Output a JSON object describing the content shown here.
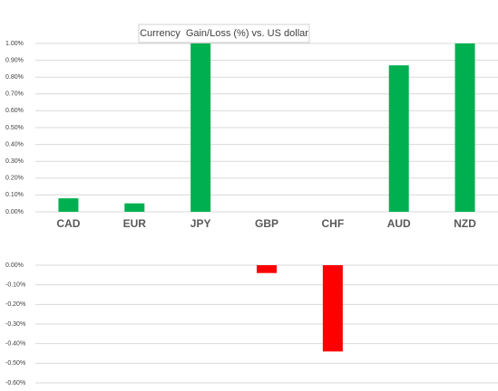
{
  "chart_data": [
    {
      "type": "bar",
      "title": "Currency  Gain/Loss (%) vs. US dollar",
      "categories": [
        "CAD",
        "EUR",
        "JPY",
        "GBP",
        "CHF",
        "AUD",
        "NZD"
      ],
      "values": [
        0.08,
        0.05,
        1.0,
        null,
        null,
        0.87,
        1.0
      ],
      "color": "#00b050",
      "ylim": [
        0,
        1.0
      ],
      "yticks": [
        {
          "value": 0,
          "label": "0.00%"
        },
        {
          "value": 0.1,
          "label": "0.10%"
        },
        {
          "value": 0.2,
          "label": "0.20%"
        },
        {
          "value": 0.3,
          "label": "0.30%"
        },
        {
          "value": 0.4,
          "label": "0.40%"
        },
        {
          "value": 0.5,
          "label": "0.50%"
        },
        {
          "value": 0.6,
          "label": "0.60%"
        },
        {
          "value": 0.7,
          "label": "0.70%"
        },
        {
          "value": 0.8,
          "label": "0.80%"
        },
        {
          "value": 0.9,
          "label": "0.90%"
        },
        {
          "value": 1.0,
          "label": "1.00%"
        }
      ],
      "grid": true
    },
    {
      "type": "bar",
      "categories": [
        null,
        null,
        null,
        null,
        null,
        null,
        null
      ],
      "values": [
        null,
        null,
        null,
        -0.04,
        -0.44,
        null,
        null
      ],
      "color": "#ff0000",
      "ylim": [
        -0.6,
        0
      ],
      "yticks": [
        {
          "value": 0,
          "label": "0.00%"
        },
        {
          "value": -0.1,
          "label": "-0.10%"
        },
        {
          "value": -0.2,
          "label": "-0.20%"
        },
        {
          "value": -0.3,
          "label": "-0.30%"
        },
        {
          "value": -0.4,
          "label": "-0.40%"
        },
        {
          "value": -0.5,
          "label": "-0.50%"
        },
        {
          "value": -0.6,
          "label": "-0.60%"
        }
      ],
      "grid": true
    }
  ]
}
